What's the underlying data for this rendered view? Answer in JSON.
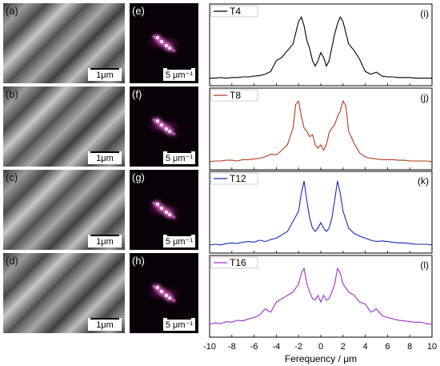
{
  "panels_left": [
    {
      "label": "(a)",
      "scale": "1μm"
    },
    {
      "label": "(b)",
      "scale": "1μm"
    },
    {
      "label": "(c)",
      "scale": "1μm"
    },
    {
      "label": "(d)",
      "scale": "1μm"
    }
  ],
  "panels_mid": [
    {
      "label": "(e)",
      "scale": "5 μm⁻¹"
    },
    {
      "label": "(f)",
      "scale": "5 μm⁻¹"
    },
    {
      "label": "(g)",
      "scale": "5 μm⁻¹"
    },
    {
      "label": "(h)",
      "scale": "5 μm⁻¹"
    }
  ],
  "chart_data": [
    {
      "type": "line",
      "panel_label": "(i)",
      "legend": "T4",
      "color": "#000000",
      "xlim": [
        -10,
        10
      ],
      "x": [
        -10,
        -9.5,
        -9,
        -8.5,
        -8,
        -7.5,
        -7,
        -6.5,
        -6,
        -5.5,
        -5,
        -4.5,
        -4,
        -3.5,
        -3,
        -2.5,
        -2,
        -1.75,
        -1.5,
        -1.25,
        -1,
        -0.75,
        -0.5,
        -0.25,
        0,
        0.25,
        0.5,
        0.75,
        1,
        1.25,
        1.5,
        1.75,
        2,
        2.5,
        3,
        3.5,
        4,
        4.5,
        5,
        5.5,
        6,
        6.5,
        7,
        7.5,
        8,
        8.5,
        9,
        9.5,
        10
      ],
      "y": [
        0.04,
        0.04,
        0.05,
        0.04,
        0.05,
        0.05,
        0.06,
        0.06,
        0.07,
        0.08,
        0.1,
        0.14,
        0.3,
        0.35,
        0.45,
        0.55,
        0.88,
        0.95,
        0.82,
        0.6,
        0.48,
        0.3,
        0.22,
        0.3,
        0.42,
        0.35,
        0.22,
        0.3,
        0.5,
        0.7,
        0.85,
        0.95,
        0.88,
        0.55,
        0.45,
        0.32,
        0.14,
        0.1,
        0.13,
        0.07,
        0.06,
        0.06,
        0.05,
        0.05,
        0.05,
        0.04,
        0.04,
        0.04,
        0.04
      ]
    },
    {
      "type": "line",
      "panel_label": "(j)",
      "legend": "T8",
      "color": "#b03a1e",
      "xlim": [
        -10,
        10
      ],
      "x": [
        -10,
        -9.5,
        -9,
        -8.5,
        -8,
        -7.5,
        -7,
        -6.5,
        -6,
        -5.5,
        -5,
        -4.5,
        -4,
        -3.5,
        -3,
        -2.5,
        -2.25,
        -2,
        -1.75,
        -1.5,
        -1.25,
        -1,
        -0.75,
        -0.5,
        -0.25,
        0,
        0.25,
        0.5,
        0.75,
        1,
        1.25,
        1.5,
        1.75,
        2,
        2.25,
        2.5,
        3,
        3.5,
        4,
        4.5,
        5,
        5.5,
        6,
        6.5,
        7,
        7.5,
        8,
        8.5,
        9,
        9.5,
        10
      ],
      "y": [
        0.05,
        0.06,
        0.06,
        0.07,
        0.07,
        0.06,
        0.08,
        0.08,
        0.09,
        0.1,
        0.12,
        0.16,
        0.15,
        0.22,
        0.3,
        0.55,
        0.9,
        0.95,
        0.72,
        0.55,
        0.5,
        0.42,
        0.45,
        0.3,
        0.25,
        0.3,
        0.22,
        0.3,
        0.48,
        0.55,
        0.6,
        0.72,
        0.8,
        0.95,
        0.88,
        0.5,
        0.32,
        0.18,
        0.12,
        0.1,
        0.09,
        0.08,
        0.08,
        0.08,
        0.07,
        0.07,
        0.06,
        0.06,
        0.06,
        0.06,
        0.05
      ]
    },
    {
      "type": "line",
      "panel_label": "(k)",
      "legend": "T12",
      "color": "#1a2ab0",
      "xlim": [
        -10,
        10
      ],
      "x": [
        -10,
        -9.5,
        -9,
        -8.5,
        -8,
        -7.5,
        -7,
        -6.5,
        -6,
        -5.5,
        -5,
        -4.5,
        -4,
        -3.5,
        -3,
        -2.5,
        -2,
        -1.75,
        -1.5,
        -1.25,
        -1,
        -0.75,
        -0.5,
        -0.25,
        0,
        0.25,
        0.5,
        0.75,
        1,
        1.25,
        1.5,
        1.75,
        2,
        2.5,
        3,
        3.5,
        4,
        4.5,
        5,
        5.5,
        6,
        6.5,
        7,
        7.5,
        8,
        8.5,
        9,
        9.5,
        10
      ],
      "y": [
        0.05,
        0.06,
        0.05,
        0.07,
        0.08,
        0.07,
        0.09,
        0.1,
        0.09,
        0.12,
        0.1,
        0.13,
        0.15,
        0.2,
        0.25,
        0.4,
        0.55,
        0.82,
        1.0,
        0.7,
        0.45,
        0.3,
        0.25,
        0.3,
        0.38,
        0.3,
        0.25,
        0.3,
        0.45,
        0.72,
        1.0,
        0.82,
        0.55,
        0.3,
        0.22,
        0.18,
        0.15,
        0.12,
        0.1,
        0.11,
        0.1,
        0.09,
        0.08,
        0.08,
        0.07,
        0.06,
        0.06,
        0.06,
        0.05
      ]
    },
    {
      "type": "line",
      "panel_label": "(l)",
      "legend": "T16",
      "color": "#9b30c8",
      "xlim": [
        -10,
        10
      ],
      "x": [
        -10,
        -9.5,
        -9,
        -8.5,
        -8,
        -7.5,
        -7,
        -6.5,
        -6,
        -5.5,
        -5,
        -4.5,
        -4,
        -3.5,
        -3,
        -2.5,
        -2,
        -1.75,
        -1.5,
        -1.25,
        -1,
        -0.75,
        -0.5,
        -0.25,
        0,
        0.25,
        0.5,
        0.75,
        1,
        1.25,
        1.5,
        1.75,
        2,
        2.5,
        3,
        3.5,
        4,
        4.5,
        5,
        5.5,
        6,
        6.5,
        7,
        7.5,
        8,
        8.5,
        9,
        9.5,
        10
      ],
      "y": [
        0.12,
        0.14,
        0.13,
        0.16,
        0.15,
        0.18,
        0.17,
        0.2,
        0.22,
        0.26,
        0.35,
        0.3,
        0.45,
        0.5,
        0.55,
        0.6,
        0.72,
        0.88,
        0.95,
        0.72,
        0.6,
        0.5,
        0.48,
        0.55,
        0.45,
        0.55,
        0.48,
        0.5,
        0.6,
        0.72,
        0.95,
        0.88,
        0.72,
        0.6,
        0.55,
        0.45,
        0.42,
        0.3,
        0.35,
        0.25,
        0.22,
        0.2,
        0.18,
        0.17,
        0.16,
        0.15,
        0.15,
        0.13,
        0.12
      ]
    }
  ],
  "axis": {
    "xlabel": "Ferequency / μm",
    "xticks": [
      "-10",
      "-8",
      "-6",
      "-4",
      "-2",
      "0",
      "2",
      "4",
      "6",
      "8",
      "10"
    ]
  }
}
